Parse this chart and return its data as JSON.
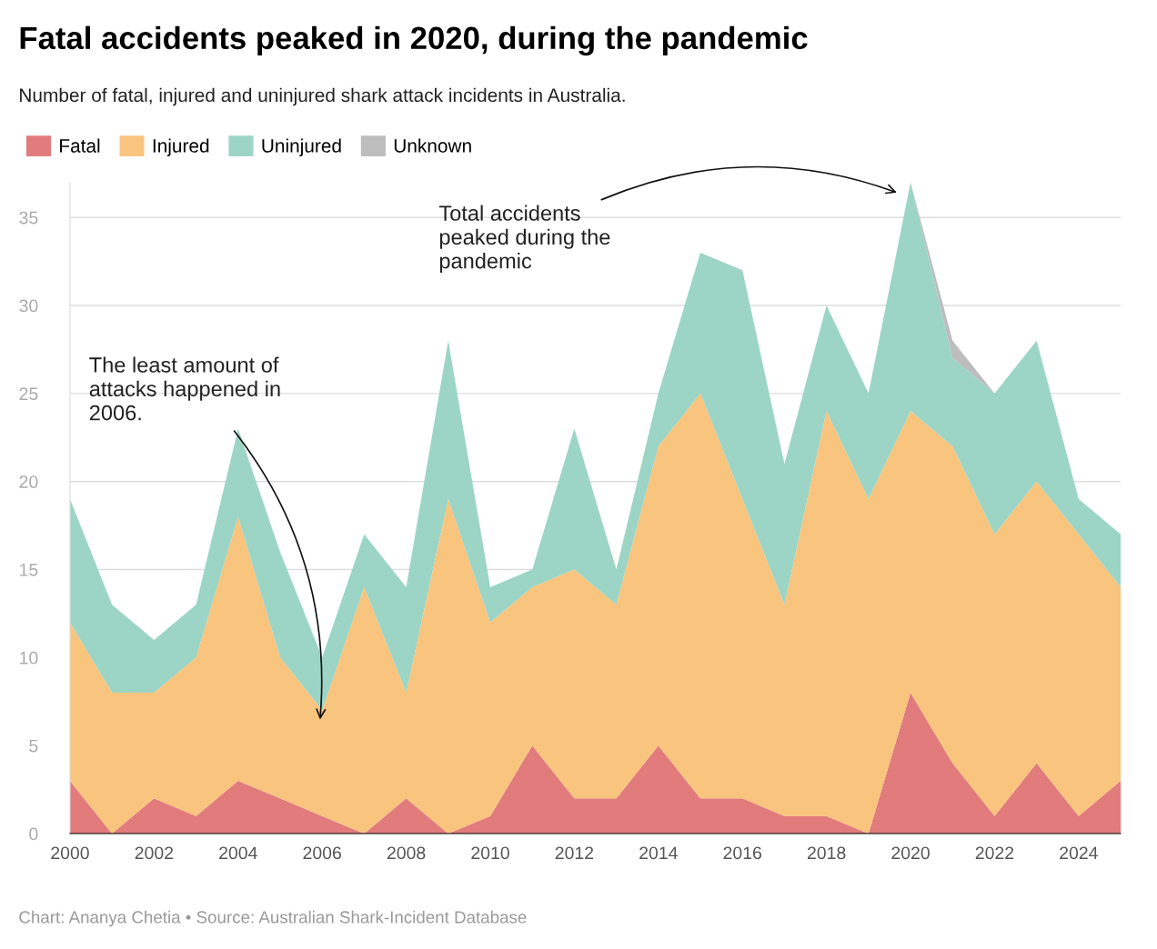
{
  "chart_data": {
    "type": "area",
    "stacked": true,
    "title": "Fatal accidents peaked in 2020, during the pandemic",
    "subtitle": "Number of fatal, injured and uninjured shark attack incidents in Australia.",
    "x": [
      2000,
      2001,
      2002,
      2003,
      2004,
      2005,
      2006,
      2007,
      2008,
      2009,
      2010,
      2011,
      2012,
      2013,
      2014,
      2015,
      2016,
      2017,
      2018,
      2019,
      2020,
      2021,
      2022,
      2023,
      2024,
      2025
    ],
    "series": [
      {
        "name": "Fatal",
        "color": "#e27c7c",
        "values": [
          3,
          0,
          2,
          1,
          3,
          2,
          1,
          0,
          2,
          0,
          1,
          5,
          2,
          2,
          5,
          2,
          2,
          1,
          1,
          0,
          8,
          4,
          1,
          4,
          1,
          3
        ]
      },
      {
        "name": "Injured",
        "color": "#f9c47e",
        "values": [
          9,
          8,
          6,
          9,
          15,
          8,
          6,
          14,
          6,
          19,
          11,
          9,
          13,
          11,
          17,
          23,
          17,
          12,
          23,
          19,
          16,
          18,
          16,
          16,
          16,
          11
        ]
      },
      {
        "name": "Uninjured",
        "color": "#9cd5c5",
        "values": [
          7,
          5,
          3,
          3,
          5,
          6,
          3,
          3,
          6,
          9,
          2,
          1,
          8,
          2,
          3,
          8,
          13,
          8,
          6,
          6,
          13,
          5,
          8,
          8,
          2,
          3
        ]
      },
      {
        "name": "Unknown",
        "color": "#bdbdbd",
        "values": [
          0,
          0,
          0,
          0,
          0,
          0,
          0,
          0,
          0,
          0,
          0,
          0,
          0,
          0,
          0,
          0,
          0,
          0,
          0,
          0,
          0,
          1,
          0,
          0,
          0,
          0
        ]
      }
    ],
    "xlim": [
      2000,
      2025
    ],
    "ylim": [
      0,
      37
    ],
    "xticks": [
      2000,
      2002,
      2004,
      2006,
      2008,
      2010,
      2012,
      2014,
      2016,
      2018,
      2020,
      2022,
      2024
    ],
    "yticks": [
      0,
      5,
      10,
      15,
      20,
      25,
      30,
      35
    ],
    "grid": "y",
    "legend": "top left",
    "annotations": [
      "The least amount of\nattacks happened in\n2006.",
      "Total accidents\npeaked during the\npandemic",
      "Chart: Ananya Chetia • Source: Australian Shark-Incident Database"
    ]
  }
}
